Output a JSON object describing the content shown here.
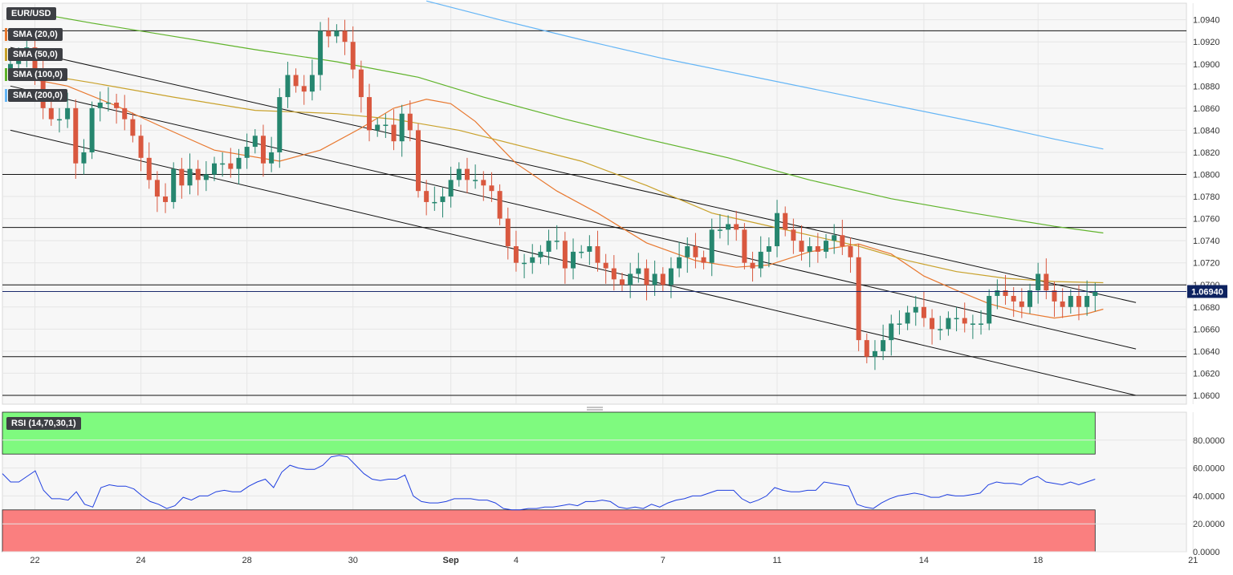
{
  "instrument": "EUR/USD",
  "indicators": [
    {
      "label": "SMA (20,0)",
      "color": "#e8782f"
    },
    {
      "label": "SMA (50,0)",
      "color": "#c8a12a"
    },
    {
      "label": "SMA (100,0)",
      "color": "#5fb32a"
    },
    {
      "label": "SMA (200,0)",
      "color": "#64b5f6"
    }
  ],
  "rsi_label": "RSI (14,70,30,1)",
  "current_price_label": "1.06940",
  "colors": {
    "up": "#26866f",
    "down": "#d9583f",
    "rsi_line": "#1f3fe0",
    "overbought": "#7ffa7f",
    "oversold": "#fa7f7f",
    "chart_bg": "#f7f7f7"
  },
  "chart_data": [
    {
      "type": "candlestick",
      "title": "EUR/USD",
      "ylim": [
        1.0592,
        1.0955
      ],
      "y_ticks": [
        "1.0600",
        "1.0620",
        "1.0640",
        "1.0660",
        "1.0680",
        "1.0700",
        "1.0720",
        "1.0740",
        "1.0760",
        "1.0780",
        "1.0800",
        "1.0820",
        "1.0840",
        "1.0860",
        "1.0880",
        "1.0900",
        "1.0920",
        "1.0940"
      ],
      "x_ticks": [
        "22",
        "24",
        "28",
        "30",
        "Sep",
        "4",
        "7",
        "11",
        "14",
        "18",
        "21"
      ],
      "horizontal_levels": [
        1.093,
        1.08,
        1.0752,
        1.07,
        1.0635,
        1.06
      ],
      "current_price": 1.0694,
      "closes": [
        1.09,
        1.0905,
        1.0915,
        1.0895,
        1.086,
        1.085,
        1.085,
        1.086,
        1.081,
        1.082,
        1.086,
        1.0865,
        1.0865,
        1.086,
        1.085,
        1.0835,
        1.0815,
        1.0795,
        1.078,
        1.0775,
        1.0805,
        1.079,
        1.0805,
        1.0795,
        1.08,
        1.081,
        1.081,
        1.0805,
        1.0815,
        1.0825,
        1.0835,
        1.081,
        1.082,
        1.087,
        1.089,
        1.088,
        1.0875,
        1.089,
        1.093,
        1.0925,
        1.093,
        1.092,
        1.0895,
        1.087,
        1.084,
        1.0845,
        1.0845,
        1.083,
        1.0855,
        1.084,
        1.0785,
        1.0775,
        1.0775,
        1.078,
        1.0795,
        1.0805,
        1.0795,
        1.0795,
        1.079,
        1.0785,
        1.076,
        1.0735,
        1.072,
        1.072,
        1.0725,
        1.073,
        1.074,
        1.074,
        1.0715,
        1.073,
        1.073,
        1.0735,
        1.072,
        1.0715,
        1.0705,
        1.07,
        1.071,
        1.0715,
        1.07,
        1.071,
        1.07,
        1.0715,
        1.0725,
        1.0735,
        1.0725,
        1.072,
        1.075,
        1.075,
        1.0755,
        1.075,
        1.072,
        1.0715,
        1.073,
        1.0735,
        1.0765,
        1.075,
        1.074,
        1.073,
        1.0735,
        1.073,
        1.074,
        1.0745,
        1.0735,
        1.0725,
        1.065,
        1.0635,
        1.064,
        1.065,
        1.0665,
        1.0665,
        1.0675,
        1.068,
        1.067,
        1.066,
        1.066,
        1.067,
        1.067,
        1.0665,
        1.0665,
        1.0665,
        1.069,
        1.0695,
        1.069,
        1.0685,
        1.068,
        1.0695,
        1.071,
        1.0695,
        1.0685,
        1.068,
        1.069,
        1.068,
        1.069,
        1.0694
      ],
      "series": [
        {
          "name": "SMA (20,0)",
          "points": [
            [
              0,
              1.089
            ],
            [
              7,
              1.088
            ],
            [
              13,
              1.0862
            ],
            [
              18,
              1.0845
            ],
            [
              25,
              1.0822
            ],
            [
              33,
              1.0812
            ],
            [
              38,
              1.0822
            ],
            [
              43,
              1.0842
            ],
            [
              47,
              1.086
            ],
            [
              51,
              1.0868
            ],
            [
              54,
              1.0864
            ],
            [
              57,
              1.0848
            ],
            [
              62,
              1.081
            ],
            [
              67,
              1.0785
            ],
            [
              72,
              1.0765
            ],
            [
              78,
              1.0738
            ],
            [
              84,
              1.0722
            ],
            [
              89,
              1.0716
            ],
            [
              93,
              1.0718
            ],
            [
              98,
              1.073
            ],
            [
              104,
              1.0737
            ],
            [
              108,
              1.0728
            ],
            [
              112,
              1.0708
            ],
            [
              116,
              1.0695
            ],
            [
              120,
              1.0683
            ],
            [
              124,
              1.0675
            ],
            [
              128,
              1.067
            ],
            [
              132,
              1.0674
            ],
            [
              134,
              1.0678
            ]
          ]
        },
        {
          "name": "SMA (50,0)",
          "points": [
            [
              0,
              1.0895
            ],
            [
              10,
              1.0883
            ],
            [
              20,
              1.087
            ],
            [
              30,
              1.0858
            ],
            [
              40,
              1.0855
            ],
            [
              47,
              1.085
            ],
            [
              55,
              1.084
            ],
            [
              63,
              1.0825
            ],
            [
              70,
              1.0812
            ],
            [
              78,
              1.079
            ],
            [
              86,
              1.0765
            ],
            [
              92,
              1.0755
            ],
            [
              98,
              1.0745
            ],
            [
              104,
              1.0735
            ],
            [
              110,
              1.0722
            ],
            [
              116,
              1.0712
            ],
            [
              122,
              1.0706
            ],
            [
              128,
              1.0703
            ],
            [
              134,
              1.0702
            ]
          ]
        },
        {
          "name": "SMA (100,0)",
          "points": [
            [
              0,
              1.095
            ],
            [
              10,
              1.0937
            ],
            [
              20,
              1.0925
            ],
            [
              30,
              1.0913
            ],
            [
              40,
              1.0902
            ],
            [
              50,
              1.0888
            ],
            [
              58,
              1.087
            ],
            [
              68,
              1.085
            ],
            [
              78,
              1.0832
            ],
            [
              88,
              1.0815
            ],
            [
              98,
              1.0795
            ],
            [
              108,
              1.0778
            ],
            [
              118,
              1.0765
            ],
            [
              128,
              1.0753
            ],
            [
              134,
              1.0747
            ]
          ]
        },
        {
          "name": "SMA (200,0)",
          "points": [
            [
              51,
              1.0957
            ],
            [
              60,
              1.094
            ],
            [
              70,
              1.0922
            ],
            [
              80,
              1.0905
            ],
            [
              90,
              1.089
            ],
            [
              100,
              1.0875
            ],
            [
              110,
              1.086
            ],
            [
              120,
              1.0845
            ],
            [
              128,
              1.0832
            ],
            [
              134,
              1.0823
            ]
          ]
        }
      ],
      "trendlines": [
        {
          "from": [
            0,
            1.0915
          ],
          "to": [
            138,
            1.0684
          ]
        },
        {
          "from": [
            0,
            1.088
          ],
          "to": [
            138,
            1.0642
          ]
        },
        {
          "from": [
            0,
            1.084
          ],
          "to": [
            138,
            1.06
          ]
        }
      ]
    },
    {
      "type": "line",
      "title": "RSI (14,70,30,1)",
      "ylim": [
        0,
        100
      ],
      "y_ticks": [
        "0.0000",
        "20.0000",
        "40.0000",
        "60.0000",
        "80.0000"
      ],
      "overbought": 70,
      "oversold": 30,
      "values": [
        56,
        50,
        50,
        54,
        58,
        44,
        38,
        38,
        37,
        43,
        34,
        32,
        46,
        48,
        47,
        47,
        45,
        40,
        36,
        34,
        31,
        33,
        39,
        37,
        40,
        40,
        43,
        44,
        43,
        43,
        47,
        50,
        52,
        46,
        57,
        62,
        60,
        59,
        59,
        62,
        68,
        69,
        68,
        62,
        56,
        52,
        51,
        52,
        52,
        55,
        40,
        36,
        35,
        35,
        36,
        38,
        38,
        38,
        37,
        37,
        35,
        31,
        30,
        30,
        31,
        31,
        32,
        32,
        33,
        34,
        33,
        36,
        36,
        37,
        36,
        32,
        31,
        32,
        31,
        34,
        32,
        35,
        37,
        38,
        40,
        40,
        42,
        44,
        44,
        44,
        38,
        35,
        37,
        40,
        46,
        44,
        43,
        43,
        44,
        44,
        50,
        49,
        48,
        47,
        34,
        32,
        31,
        35,
        38,
        40,
        41,
        42,
        41,
        39,
        39,
        41,
        40,
        40,
        41,
        42,
        48,
        50,
        49,
        49,
        48,
        52,
        54,
        50,
        49,
        48,
        50,
        48,
        50,
        52
      ]
    }
  ]
}
